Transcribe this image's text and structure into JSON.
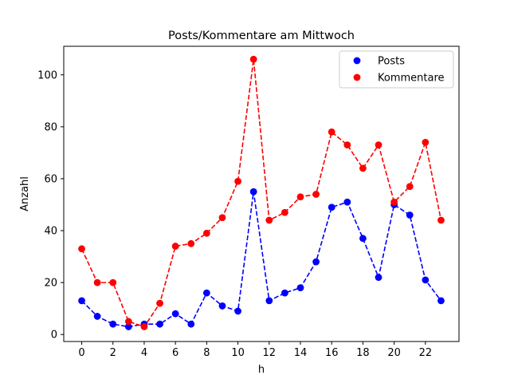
{
  "chart_data": {
    "type": "line",
    "title": "Posts/Kommentare am Mittwoch",
    "xlabel": "h",
    "ylabel": "Anzahl",
    "x": [
      0,
      1,
      2,
      3,
      4,
      5,
      6,
      7,
      8,
      9,
      10,
      11,
      12,
      13,
      14,
      15,
      16,
      17,
      18,
      19,
      20,
      21,
      22,
      23
    ],
    "xlim": [
      -1.15,
      24.15
    ],
    "ylim": [
      -2.7,
      111
    ],
    "xticks": [
      0,
      2,
      4,
      6,
      8,
      10,
      12,
      14,
      16,
      18,
      20,
      22
    ],
    "yticks": [
      0,
      20,
      40,
      60,
      80,
      100
    ],
    "grid": false,
    "legend_position": "top-right",
    "series": [
      {
        "name": "Posts",
        "color": "#0000ff",
        "line_style": "dashed",
        "marker": "circle",
        "values": [
          13,
          7,
          4,
          3,
          4,
          4,
          8,
          4,
          16,
          11,
          9,
          55,
          13,
          16,
          18,
          28,
          49,
          51,
          37,
          22,
          50,
          46,
          21,
          13
        ]
      },
      {
        "name": "Kommentare",
        "color": "#ff0000",
        "line_style": "dashed",
        "marker": "circle",
        "values": [
          33,
          20,
          20,
          5,
          3,
          12,
          34,
          35,
          39,
          45,
          59,
          106,
          44,
          47,
          53,
          54,
          78,
          73,
          64,
          73,
          51,
          57,
          74,
          44
        ]
      }
    ]
  }
}
